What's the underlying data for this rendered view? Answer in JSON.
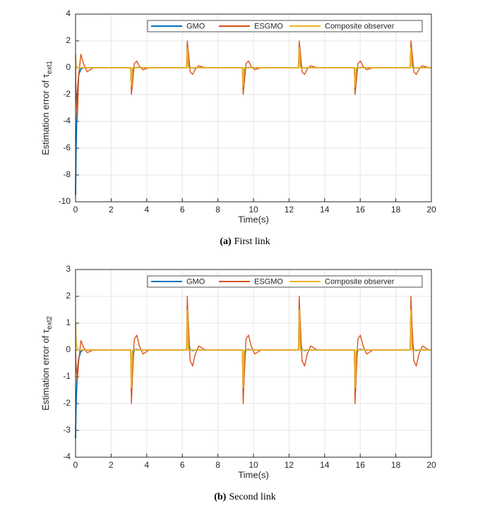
{
  "chart_data": [
    {
      "type": "line",
      "xlabel": "Time(s)",
      "ylabel": "Estimation error of τ",
      "ylabel_subscript": "ext1",
      "caption_label": "(a)",
      "caption": "First link",
      "xlim": [
        0,
        20
      ],
      "ylim": [
        -10,
        4
      ],
      "xticks": [
        0,
        2,
        4,
        6,
        8,
        10,
        12,
        14,
        16,
        18,
        20
      ],
      "yticks": [
        -10,
        -8,
        -6,
        -4,
        -2,
        0,
        2,
        4
      ],
      "grid": true,
      "legend": "top-right",
      "x": [
        0,
        0.03,
        0.1,
        0.18,
        0.3,
        0.45,
        0.65,
        1.0,
        2.0,
        3.1,
        3.14,
        3.2,
        3.3,
        3.44,
        3.59,
        3.79,
        4.14,
        6.24,
        6.28,
        6.34,
        6.44,
        6.58,
        6.73,
        6.93,
        7.28,
        9.38,
        9.42,
        9.48,
        9.58,
        9.72,
        9.87,
        10.07,
        10.42,
        12.53,
        12.57,
        12.63,
        12.73,
        12.87,
        13.02,
        13.22,
        13.57,
        15.67,
        15.71,
        15.77,
        15.87,
        16.01,
        16.16,
        16.36,
        16.71,
        18.81,
        18.85,
        18.91,
        19.01,
        19.15,
        19.3,
        19.5,
        19.85,
        20
      ],
      "series": [
        {
          "name": "GMO",
          "color": "#0072BD",
          "values": [
            -9.5,
            -6,
            -2,
            -0.5,
            -0.1,
            0,
            0,
            0,
            0,
            0,
            -1.5,
            -0.3,
            0,
            0.02,
            0,
            0,
            0,
            0,
            1.6,
            0.3,
            0,
            -0.02,
            0,
            0,
            0,
            0,
            -1.5,
            -0.3,
            0,
            0.02,
            0,
            0,
            0,
            0,
            1.6,
            0.3,
            0,
            -0.02,
            0,
            0,
            0,
            0,
            -1.5,
            -0.3,
            0,
            0.02,
            0,
            0,
            0,
            0,
            1.6,
            0.3,
            0,
            -0.02,
            0,
            0,
            0,
            0
          ]
        },
        {
          "name": "ESGMO",
          "color": "#D95319",
          "values": [
            0,
            -2,
            -3.8,
            -0.5,
            1.0,
            0.3,
            -0.3,
            0,
            0,
            0,
            -2,
            -1.2,
            0.3,
            0.5,
            0.1,
            -0.15,
            0,
            0,
            2,
            1.2,
            -0.3,
            -0.5,
            -0.1,
            0.15,
            0,
            0,
            -2,
            -1.2,
            0.3,
            0.5,
            0.1,
            -0.15,
            0,
            0,
            2,
            1.2,
            -0.3,
            -0.5,
            -0.1,
            0.15,
            0,
            0,
            -2,
            -1.2,
            0.3,
            0.5,
            0.1,
            -0.15,
            0,
            0,
            2,
            1.2,
            -0.3,
            -0.5,
            -0.1,
            0.15,
            0,
            0
          ]
        },
        {
          "name": "Composite observer",
          "color": "#EDB120",
          "values": [
            1,
            0.2,
            0,
            0,
            0,
            0,
            0,
            0,
            0,
            0,
            -1.4,
            0,
            0,
            0,
            0,
            0,
            0,
            0,
            1.5,
            0,
            0,
            0,
            0,
            0,
            0,
            0,
            -1.4,
            0,
            0,
            0,
            0,
            0,
            0,
            0,
            1.5,
            0,
            0,
            0,
            0,
            0,
            0,
            0,
            -1.4,
            0,
            0,
            0,
            0,
            0,
            0,
            0,
            1.5,
            0,
            0,
            0,
            0,
            0,
            0,
            0
          ]
        }
      ]
    },
    {
      "type": "line",
      "xlabel": "Time(s)",
      "ylabel": "Estimation error of τ",
      "ylabel_subscript": "ext2",
      "caption_label": "(b)",
      "caption": "Second link",
      "xlim": [
        0,
        20
      ],
      "ylim": [
        -4,
        3
      ],
      "xticks": [
        0,
        2,
        4,
        6,
        8,
        10,
        12,
        14,
        16,
        18,
        20
      ],
      "yticks": [
        -4,
        -3,
        -2,
        -1,
        0,
        1,
        2,
        3
      ],
      "grid": true,
      "legend": "top-right",
      "x": [
        0,
        0.03,
        0.1,
        0.18,
        0.3,
        0.45,
        0.65,
        1.0,
        2.0,
        3.1,
        3.14,
        3.2,
        3.3,
        3.44,
        3.59,
        3.79,
        4.14,
        6.24,
        6.28,
        6.34,
        6.44,
        6.58,
        6.73,
        6.93,
        7.28,
        9.38,
        9.42,
        9.48,
        9.58,
        9.72,
        9.87,
        10.07,
        10.42,
        12.53,
        12.57,
        12.63,
        12.73,
        12.87,
        13.02,
        13.22,
        13.57,
        15.67,
        15.71,
        15.77,
        15.87,
        16.01,
        16.16,
        16.36,
        16.71,
        18.81,
        18.85,
        18.91,
        19.01,
        19.15,
        19.3,
        19.5,
        19.85,
        20
      ],
      "series": [
        {
          "name": "GMO",
          "color": "#0072BD",
          "values": [
            -3.3,
            -2,
            -0.8,
            -0.3,
            -0.05,
            0,
            0,
            0,
            0,
            0,
            -1.5,
            -0.3,
            0,
            0.02,
            0,
            0,
            0,
            0,
            1.6,
            0.3,
            0,
            -0.02,
            0,
            0,
            0,
            0,
            -1.5,
            -0.3,
            0,
            0.02,
            0,
            0,
            0,
            0,
            1.6,
            0.3,
            0,
            -0.02,
            0,
            0,
            0,
            0,
            -1.5,
            -0.3,
            0,
            0.02,
            0,
            0,
            0,
            0,
            1.6,
            0.3,
            0,
            -0.02,
            0,
            0,
            0,
            0
          ]
        },
        {
          "name": "ESGMO",
          "color": "#D95319",
          "values": [
            0,
            -0.6,
            -1.15,
            -0.4,
            0.35,
            0.1,
            -0.1,
            0,
            0,
            0,
            -2,
            -1.0,
            0.4,
            0.55,
            0.15,
            -0.15,
            0,
            0,
            2,
            1.0,
            -0.4,
            -0.6,
            -0.15,
            0.15,
            0,
            0,
            -2,
            -1.0,
            0.4,
            0.55,
            0.15,
            -0.15,
            0,
            0,
            2,
            1.0,
            -0.4,
            -0.6,
            -0.15,
            0.15,
            0,
            0,
            -2,
            -1.0,
            0.4,
            0.55,
            0.15,
            -0.15,
            0,
            0,
            2,
            1.0,
            -0.4,
            -0.6,
            -0.15,
            0.15,
            0,
            0
          ]
        },
        {
          "name": "Composite observer",
          "color": "#EDB120",
          "values": [
            1,
            0.3,
            0,
            0,
            0,
            0,
            0,
            0,
            0,
            0,
            -1.4,
            0,
            0,
            0,
            0,
            0,
            0,
            0,
            1.5,
            0,
            0,
            0,
            0,
            0,
            0,
            0,
            -1.4,
            0,
            0,
            0,
            0,
            0,
            0,
            0,
            1.5,
            0,
            0,
            0,
            0,
            0,
            0,
            0,
            -1.4,
            0,
            0,
            0,
            0,
            0,
            0,
            0,
            1.5,
            0,
            0,
            0,
            0,
            0,
            0,
            0
          ]
        }
      ]
    }
  ]
}
